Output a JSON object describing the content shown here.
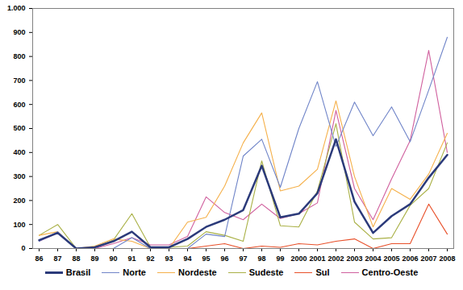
{
  "chart_data": {
    "type": "line",
    "categories": [
      "86",
      "87",
      "88",
      "89",
      "90",
      "91",
      "92",
      "93",
      "94",
      "95",
      "96",
      "97",
      "98",
      "99",
      "2000",
      "2001",
      "2002",
      "2003",
      "2004",
      "2005",
      "2006",
      "2007",
      "2008"
    ],
    "series": [
      {
        "name": "Brasil",
        "color": "#2b3a7a",
        "values": [
          35,
          65,
          0,
          5,
          30,
          70,
          5,
          5,
          40,
          90,
          120,
          160,
          345,
          130,
          145,
          230,
          455,
          195,
          65,
          135,
          185,
          295,
          390
        ]
      },
      {
        "name": "Norte",
        "color": "#6f84c8",
        "values": [
          30,
          70,
          0,
          0,
          0,
          45,
          0,
          0,
          0,
          60,
          50,
          385,
          455,
          255,
          500,
          695,
          425,
          610,
          470,
          590,
          445,
          660,
          880
        ]
      },
      {
        "name": "Nordeste",
        "color": "#f5b04a",
        "values": [
          55,
          70,
          0,
          10,
          40,
          30,
          0,
          0,
          110,
          130,
          260,
          440,
          565,
          240,
          260,
          330,
          615,
          300,
          90,
          250,
          205,
          310,
          480
        ]
      },
      {
        "name": "Sudeste",
        "color": "#a9b045",
        "values": [
          55,
          100,
          0,
          5,
          35,
          145,
          5,
          5,
          10,
          70,
          55,
          30,
          365,
          95,
          90,
          240,
          520,
          110,
          40,
          45,
          180,
          250,
          440
        ]
      },
      {
        "name": "Sul",
        "color": "#e8502a",
        "values": [
          0,
          0,
          0,
          0,
          0,
          0,
          0,
          0,
          0,
          10,
          20,
          0,
          10,
          5,
          20,
          15,
          30,
          40,
          0,
          20,
          20,
          185,
          60
        ]
      },
      {
        "name": "Centro-Oeste",
        "color": "#d0609e",
        "values": [
          30,
          65,
          0,
          0,
          20,
          45,
          15,
          15,
          50,
          215,
          150,
          120,
          185,
          125,
          145,
          190,
          575,
          250,
          120,
          290,
          450,
          825,
          400
        ]
      }
    ],
    "ylim": [
      0,
      1000
    ],
    "yticks": [
      0,
      100,
      200,
      300,
      400,
      500,
      600,
      700,
      800,
      900,
      {
        "value": 1000,
        "label": "1.000"
      }
    ],
    "grid": false,
    "legend": "bottom"
  }
}
